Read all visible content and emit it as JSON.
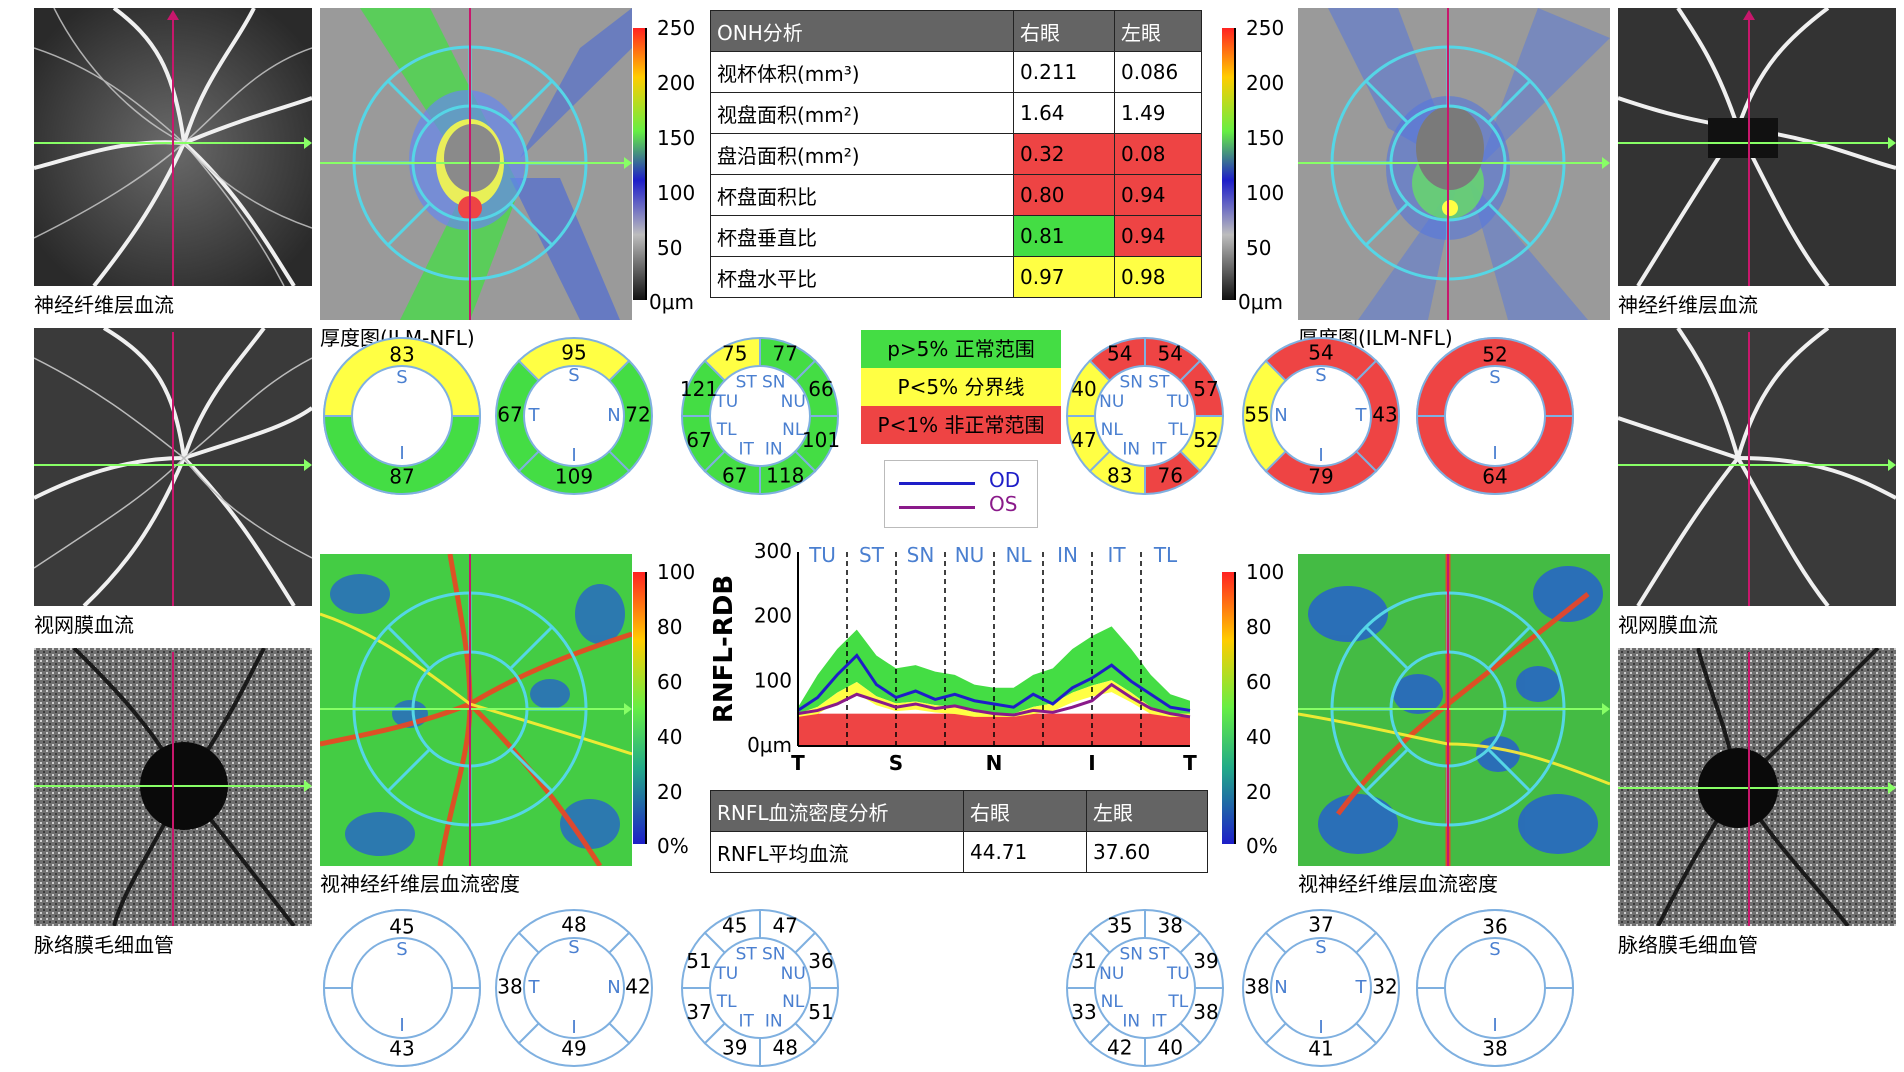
{
  "panels": {
    "left_rnfl": "神经纤维层血流",
    "left_retina": "视网膜血流",
    "left_choroid": "脉络膜毛细血管",
    "right_rnfl": "神经纤维层血流",
    "right_retina": "视网膜血流",
    "right_choroid": "脉络膜毛细血管",
    "thickness_left": "厚度图(ILM-NFL)",
    "thickness_right": "厚度图(ILM-NFL)",
    "density_left": "视神经纤维层血流密度",
    "density_right": "视神经纤维层血流密度"
  },
  "colorbar_thickness": {
    "ticks": [
      "250",
      "200",
      "150",
      "100",
      "50",
      "0μm"
    ]
  },
  "colorbar_density": {
    "ticks": [
      "100",
      "80",
      "60",
      "40",
      "20",
      "0%"
    ]
  },
  "onh_table": {
    "header": [
      "ONH分析",
      "右眼",
      "左眼"
    ],
    "rows": [
      {
        "label": "视杯体积(mm³)",
        "od": "0.211",
        "os": "0.086",
        "od_status": "none",
        "os_status": "none"
      },
      {
        "label": "视盘面积(mm²)",
        "od": "1.64",
        "os": "1.49",
        "od_status": "none",
        "os_status": "none"
      },
      {
        "label": "盘沿面积(mm²)",
        "od": "0.32",
        "os": "0.08",
        "od_status": "red",
        "os_status": "red"
      },
      {
        "label": "杯盘面积比",
        "od": "0.80",
        "os": "0.94",
        "od_status": "red",
        "os_status": "red"
      },
      {
        "label": "杯盘垂直比",
        "od": "0.81",
        "os": "0.94",
        "od_status": "green",
        "os_status": "red"
      },
      {
        "label": "杯盘水平比",
        "od": "0.97",
        "os": "0.98",
        "od_status": "yellow",
        "os_status": "yellow"
      }
    ]
  },
  "legend": {
    "normal": "p>5% 正常范围",
    "border": "P<5% 分界线",
    "abnormal": "P<1% 非正常范围",
    "od": "OD",
    "os": "OS"
  },
  "rnfl_table": {
    "header": [
      "RNFL血流密度分析",
      "右眼",
      "左眼"
    ],
    "row": {
      "label": "RNFL平均血流",
      "od": "44.71",
      "os": "37.60"
    }
  },
  "sector_labels": {
    "S": "S",
    "I": "I",
    "N": "N",
    "T": "T",
    "ST": "ST",
    "SN": "SN",
    "NU": "NU",
    "NL": "NL",
    "IN": "IN",
    "IT": "IT",
    "TL": "TL",
    "TU": "TU"
  },
  "od_thickness": {
    "two": {
      "S": "83",
      "I": "87"
    },
    "four": {
      "S": "95",
      "T": "67",
      "N": "72",
      "I": "109"
    },
    "eight": {
      "ST": "75",
      "SN": "77",
      "NU": "66",
      "NL": "101",
      "IN": "118",
      "IT": "67",
      "TL": "67",
      "TU": "121"
    }
  },
  "os_thickness": {
    "eight": {
      "ST": "54",
      "SN": "54",
      "NU": "40",
      "NL": "47",
      "IN": "83",
      "IT": "76",
      "TL": "52",
      "TU": "57"
    },
    "four": {
      "S": "54",
      "N": "55",
      "T": "43",
      "I": "79"
    },
    "two": {
      "S": "52",
      "I": "64"
    }
  },
  "od_density": {
    "two": {
      "S": "45",
      "I": "43"
    },
    "four": {
      "S": "48",
      "T": "38",
      "N": "42",
      "I": "49"
    },
    "eight": {
      "ST": "45",
      "SN": "47",
      "NU": "36",
      "NL": "51",
      "IN": "48",
      "IT": "39",
      "TL": "37",
      "TU": "51"
    }
  },
  "os_density": {
    "eight": {
      "ST": "38",
      "SN": "35",
      "NU": "31",
      "NL": "33",
      "IN": "42",
      "IT": "40",
      "TL": "38",
      "TU": "39"
    },
    "four": {
      "S": "37",
      "N": "38",
      "T": "32",
      "I": "41"
    },
    "two": {
      "S": "36",
      "I": "38"
    }
  },
  "colors": {
    "normal": "#44dd44",
    "border": "#ffff44",
    "abnormal": "#ee4444",
    "od_line": "#1e1ec8",
    "os_line": "#8a1a8a",
    "cyan": "#55d6e6",
    "magenta": "#c8176c",
    "green_line": "#88ff66",
    "sector_text": "#4a7fd0"
  },
  "chart_data": {
    "type": "line",
    "ylabel": "RNFL-RDB",
    "y_ticks": [
      "300",
      "200",
      "100",
      "0μm"
    ],
    "ylim": [
      0,
      300
    ],
    "top_labels": [
      "TU",
      "ST",
      "SN",
      "NU",
      "NL",
      "IN",
      "IT",
      "TL"
    ],
    "bottom_labels": [
      "T",
      "S",
      "N",
      "I",
      "T"
    ],
    "x": [
      0,
      16,
      32,
      48,
      64,
      80,
      96,
      112,
      128,
      144,
      160,
      176,
      192,
      208,
      224,
      240,
      256,
      272,
      288,
      304,
      320
    ],
    "series": [
      {
        "name": "OD",
        "values": [
          55,
          75,
          110,
          140,
          95,
          75,
          85,
          72,
          80,
          70,
          65,
          60,
          80,
          65,
          90,
          105,
          125,
          100,
          80,
          60,
          55
        ]
      },
      {
        "name": "OS",
        "values": [
          50,
          55,
          65,
          80,
          70,
          60,
          65,
          58,
          62,
          55,
          50,
          48,
          55,
          52,
          60,
          70,
          95,
          75,
          58,
          50,
          45
        ]
      }
    ],
    "normal_upper": [
      60,
      110,
      150,
      180,
      140,
      120,
      125,
      115,
      110,
      95,
      90,
      90,
      110,
      120,
      150,
      170,
      185,
      150,
      110,
      80,
      70
    ]
  }
}
